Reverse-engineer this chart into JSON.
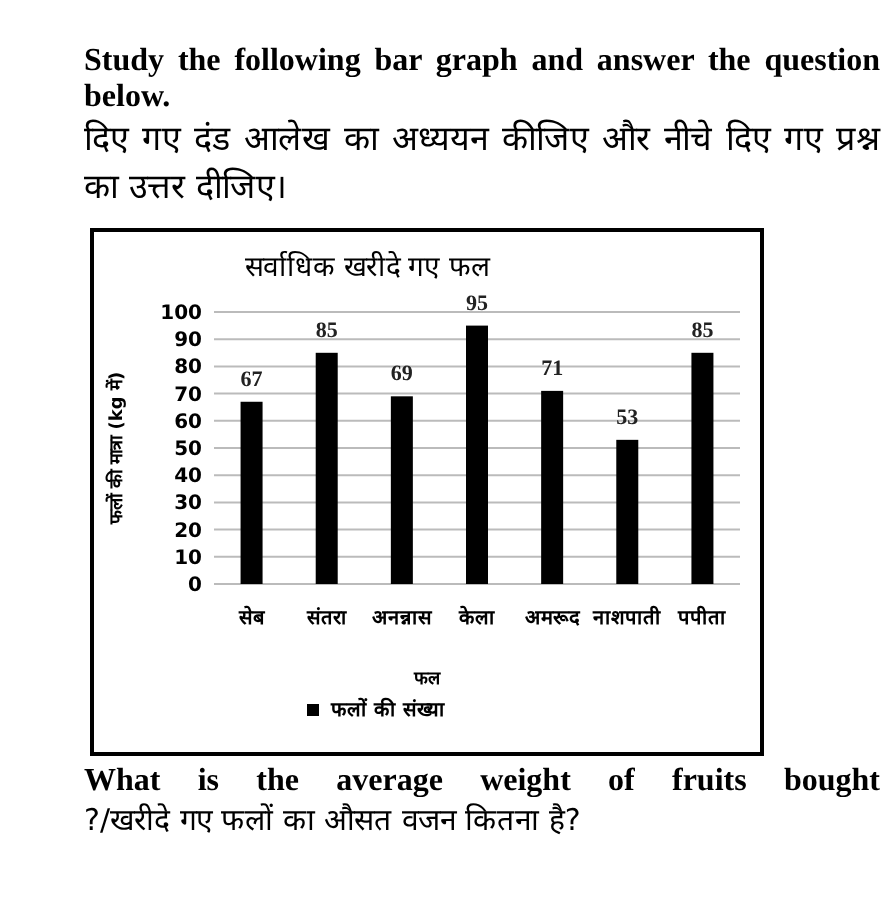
{
  "chart_data": {
    "type": "bar",
    "title": "सर्वाधिक खरीदे गए फल",
    "xlabel": "फल",
    "ylabel": "फलों की मात्रा (kg में)",
    "categories": [
      "सेब",
      "संतरा",
      "अनन्नास",
      "केला",
      "अमरूद",
      "नाशपाती",
      "पपीता"
    ],
    "series": [
      {
        "name": "फलों की संख्या",
        "color": "#000000",
        "values": [
          67,
          85,
          69,
          95,
          71,
          53,
          85
        ]
      }
    ],
    "ylim": [
      0,
      100
    ],
    "yticks": [
      0,
      10,
      20,
      30,
      40,
      50,
      60,
      70,
      80,
      90,
      100
    ],
    "grid": "y",
    "data_labels": true,
    "legend": "bottom",
    "annotations": [
      "Study the following bar graph and answer the question below.",
      "दिए गए दंड आलेख का अध्ययन कीजिए और नीचे दिए गए प्रश्न का उत्तर दीजिए।",
      "What is the average weight of fruits bought",
      "?/खरीदे गए फलों का औसत वजन कितना है?"
    ]
  }
}
